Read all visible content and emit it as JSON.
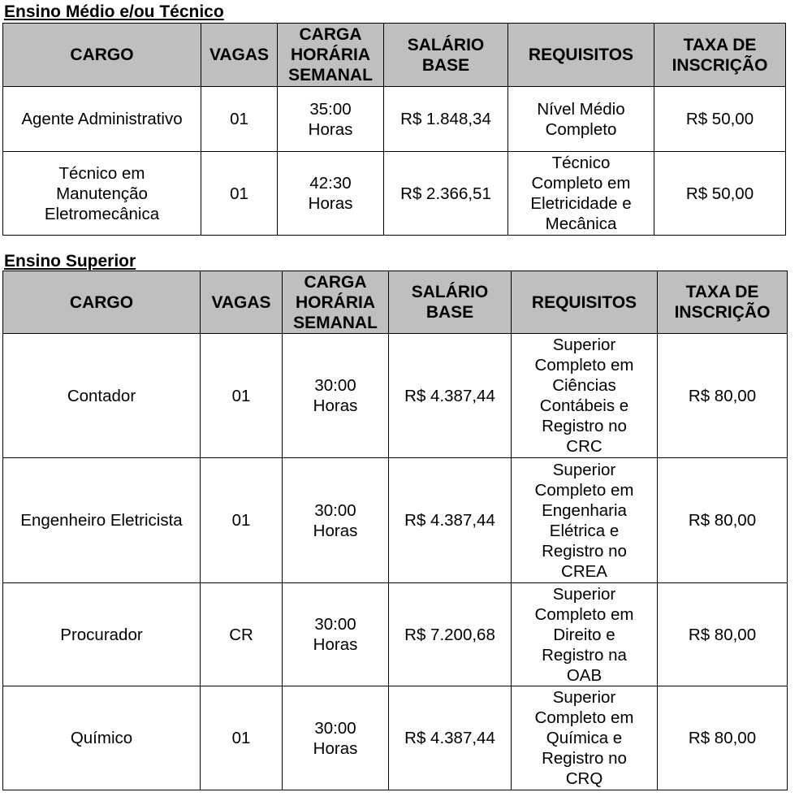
{
  "sections": [
    {
      "title": "Ensino Médio e/ou Técnico",
      "headers": [
        "CARGO",
        "VAGAS",
        "CARGA\nHORÁRIA\nSEMANAL",
        "SALÁRIO\nBASE",
        "REQUISITOS",
        "TAXA DE\nINSCRIÇÃO"
      ],
      "rows": [
        [
          "Agente Administrativo",
          "01",
          "35:00\nHoras",
          "R$ 1.848,34",
          "Nível Médio\nCompleto",
          "R$ 50,00"
        ],
        [
          "Técnico em\nManutenção\nEletromecânica",
          "01",
          "42:30\nHoras",
          "R$ 2.366,51",
          "Técnico\nCompleto em\nEletricidade e\nMecânica",
          "R$ 50,00"
        ]
      ]
    },
    {
      "title": "Ensino Superior",
      "headers": [
        "CARGO",
        "VAGAS",
        "CARGA\nHORÁRIA\nSEMANAL",
        "SALÁRIO\nBASE",
        "REQUISITOS",
        "TAXA DE\nINSCRIÇÃO"
      ],
      "rows": [
        [
          "Contador",
          "01",
          "30:00\nHoras",
          "R$ 4.387,44",
          "Superior\nCompleto em\nCiências\nContábeis e\nRegistro no\nCRC",
          "R$ 80,00"
        ],
        [
          "Engenheiro Eletricista",
          "01",
          "30:00\nHoras",
          "R$ 4.387,44",
          "Superior\nCompleto em\nEngenharia\nElétrica e\nRegistro no\nCREA",
          "R$ 80,00"
        ],
        [
          "Procurador",
          "CR",
          "30:00\nHoras",
          "R$ 7.200,68",
          "Superior\nCompleto em\nDireito e\nRegistro na\nOAB",
          "R$ 80,00"
        ],
        [
          "Químico",
          "01",
          "30:00\nHoras",
          "R$ 4.387,44",
          "Superior\nCompleto em\nQuímica e\nRegistro no\nCRQ",
          "R$ 80,00"
        ]
      ]
    }
  ]
}
